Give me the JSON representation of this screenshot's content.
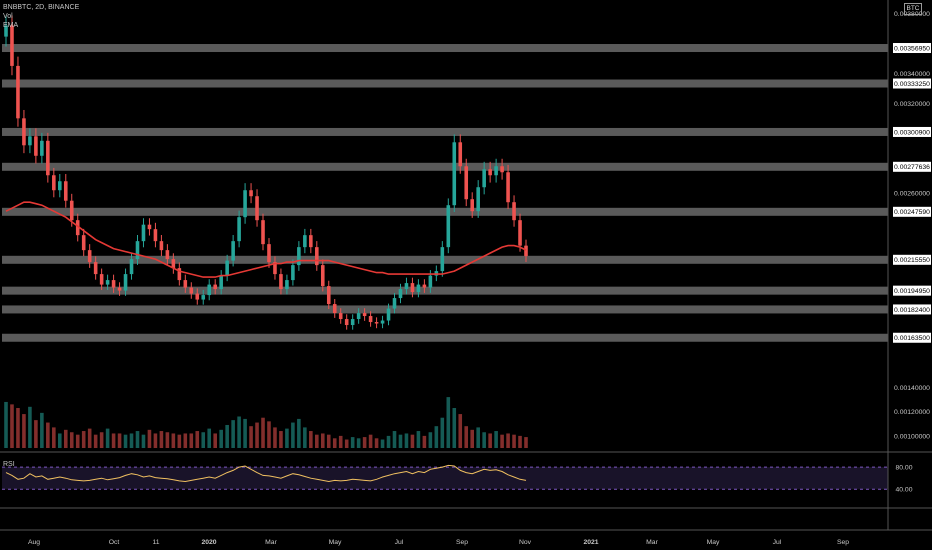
{
  "header": {
    "symbol_line": "BNBBTC, 2D, BINANCE",
    "indicators": [
      "Vol",
      "EMA"
    ],
    "currency": "BTC"
  },
  "rsi_panel": {
    "label": "RSI",
    "upper_level": "80.00",
    "lower_level": "40.00"
  },
  "colors": {
    "background": "#000000",
    "up": "#26a69a",
    "down": "#ef5350",
    "ema": "#e53935",
    "level_band": "#787878",
    "rsi_line": "#f0c060",
    "rsi_bounds": "#7e57c2"
  },
  "chart_data": [
    {
      "type": "candlestick",
      "title": "BNBBTC, 2D, BINANCE",
      "x_tick_labels": [
        "Aug",
        "Oct",
        "11",
        "2020",
        "Mar",
        "May",
        "Jul",
        "Sep",
        "Nov",
        "2021",
        "Mar",
        "May",
        "Jul",
        "Sep"
      ],
      "y_tick_labels": [
        "0.00380000",
        "0.00356950",
        "0.00340000",
        "0.00333250",
        "0.00320000",
        "0.00300900",
        "0.00277636",
        "0.00260000",
        "0.00247590",
        "0.00215550",
        "0.00194950",
        "0.00182400",
        "0.00163500"
      ],
      "ylim": [
        0.0016,
        0.00385
      ],
      "horizontal_levels": [
        0.0035695,
        0.0033325,
        0.003009,
        0.00277636,
        0.0024759,
        0.0021555,
        0.0019495,
        0.001824,
        0.001635
      ],
      "close_series": [
        0.00372,
        0.00345,
        0.0031,
        0.00292,
        0.00298,
        0.00285,
        0.00295,
        0.00272,
        0.00262,
        0.00268,
        0.00255,
        0.00242,
        0.00232,
        0.00222,
        0.00214,
        0.00206,
        0.00199,
        0.00202,
        0.00197,
        0.00195,
        0.00206,
        0.00216,
        0.00228,
        0.00239,
        0.00236,
        0.00228,
        0.00222,
        0.00216,
        0.0021,
        0.00202,
        0.00197,
        0.00193,
        0.00189,
        0.00192,
        0.00199,
        0.00196,
        0.00205,
        0.00215,
        0.00228,
        0.00244,
        0.00262,
        0.00258,
        0.00242,
        0.00226,
        0.00214,
        0.00206,
        0.00196,
        0.00202,
        0.00212,
        0.00224,
        0.00232,
        0.00224,
        0.00212,
        0.00198,
        0.00186,
        0.0018,
        0.00176,
        0.00172,
        0.00176,
        0.0018,
        0.00178,
        0.00174,
        0.00173,
        0.00175,
        0.00183,
        0.0019,
        0.00196,
        0.002,
        0.00194,
        0.00199,
        0.00197,
        0.00205,
        0.00208,
        0.00224,
        0.00252,
        0.00294,
        0.00278,
        0.00256,
        0.00248,
        0.00264,
        0.00276,
        0.00272,
        0.00278,
        0.00274,
        0.00254,
        0.00242,
        0.00225,
        0.00218
      ],
      "ema_series": [
        0.00248,
        0.0025,
        0.00252,
        0.00254,
        0.00254,
        0.00253,
        0.00252,
        0.0025,
        0.00248,
        0.00246,
        0.00244,
        0.00241,
        0.00238,
        0.00235,
        0.00232,
        0.00229,
        0.00227,
        0.00225,
        0.00223,
        0.00222,
        0.00221,
        0.0022,
        0.00219,
        0.00218,
        0.00217,
        0.00216,
        0.00214,
        0.00212,
        0.0021,
        0.00208,
        0.00207,
        0.00206,
        0.00205,
        0.00204,
        0.00204,
        0.00204,
        0.00205,
        0.00205,
        0.00206,
        0.00207,
        0.00208,
        0.00209,
        0.0021,
        0.00211,
        0.00212,
        0.00213,
        0.00213,
        0.00214,
        0.00214,
        0.00215,
        0.00215,
        0.00215,
        0.00215,
        0.00215,
        0.00215,
        0.00214,
        0.00213,
        0.00212,
        0.00211,
        0.0021,
        0.00209,
        0.00208,
        0.00207,
        0.00207,
        0.00206,
        0.00206,
        0.00206,
        0.00206,
        0.00206,
        0.00206,
        0.00206,
        0.00206,
        0.00206,
        0.00206,
        0.00207,
        0.00208,
        0.0021,
        0.00212,
        0.00214,
        0.00216,
        0.00218,
        0.0022,
        0.00222,
        0.00224,
        0.00225,
        0.00225,
        0.00224,
        0.00222
      ],
      "volume_series": [
        0.00128,
        0.00126,
        0.00123,
        0.00118,
        0.00124,
        0.00113,
        0.00119,
        0.00111,
        0.00107,
        0.00102,
        0.00105,
        0.00103,
        0.00101,
        0.00104,
        0.00106,
        0.00101,
        0.00103,
        0.00106,
        0.00102,
        0.00102,
        0.00101,
        0.00102,
        0.00104,
        0.00101,
        0.00105,
        0.00102,
        0.00104,
        0.00103,
        0.00102,
        0.00101,
        0.00102,
        0.00102,
        0.00104,
        0.00103,
        0.00106,
        0.00102,
        0.00105,
        0.00109,
        0.00113,
        0.00116,
        0.00114,
        0.00108,
        0.00111,
        0.00115,
        0.00112,
        0.00107,
        0.00104,
        0.00106,
        0.00111,
        0.00114,
        0.00107,
        0.00104,
        0.00101,
        0.00102,
        0.00101,
        0.00098,
        0.001,
        0.00097,
        0.00099,
        0.00098,
        0.00099,
        0.00101,
        0.00098,
        0.00097,
        0.001,
        0.00104,
        0.00101,
        0.00102,
        0.00101,
        0.00104,
        0.001,
        0.00103,
        0.00108,
        0.00115,
        0.00132,
        0.00123,
        0.00118,
        0.00108,
        0.00105,
        0.00107,
        0.00103,
        0.00102,
        0.00104,
        0.00101,
        0.00102,
        0.00101,
        0.001,
        0.00099
      ],
      "volume_ylim": [
        0.0009,
        0.00175
      ],
      "volume_tick_labels": [
        "0.00140000",
        "0.00120000",
        "0.00100000"
      ],
      "rsi_series": [
        60,
        55,
        48,
        50,
        58,
        52,
        54,
        48,
        50,
        52,
        50,
        47,
        46,
        45,
        46,
        48,
        50,
        47,
        49,
        51,
        55,
        58,
        56,
        52,
        54,
        51,
        50,
        49,
        47,
        45,
        44,
        46,
        48,
        50,
        52,
        50,
        55,
        60,
        64,
        70,
        72,
        66,
        60,
        55,
        54,
        52,
        50,
        54,
        58,
        56,
        53,
        50,
        48,
        46,
        44,
        46,
        45,
        46,
        48,
        47,
        46,
        45,
        48,
        52,
        55,
        58,
        60,
        62,
        58,
        62,
        60,
        66,
        68,
        70,
        73,
        72,
        64,
        60,
        58,
        62,
        66,
        64,
        65,
        62,
        56,
        52,
        48,
        46
      ],
      "rsi_ylim": [
        25,
        90
      ]
    }
  ]
}
